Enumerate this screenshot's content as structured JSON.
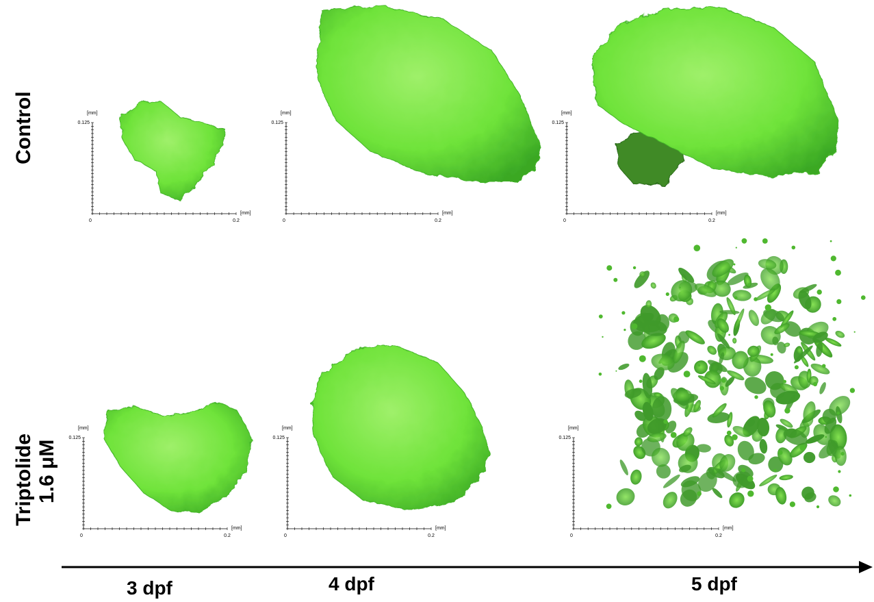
{
  "rows": [
    {
      "label": "Control",
      "label_extra": ""
    },
    {
      "label": "Triptolide",
      "label_extra": "1.6 μM"
    }
  ],
  "timepoints": [
    "3 dpf",
    "4 dpf",
    "5 dpf"
  ],
  "axis": {
    "unit_y": "[mm]",
    "unit_x": "[mm]",
    "y_max_label": "0.125",
    "x_max_label": "0.2",
    "origin_label": "0"
  },
  "colors": {
    "tissue": "#6fe33a",
    "tissue_dark": "#2f9a1c",
    "tissue_light": "#9ff06a",
    "axis": "#000000"
  },
  "panels": [
    {
      "row": 0,
      "time": "3 dpf",
      "shape": "small-heart-lobe"
    },
    {
      "row": 0,
      "time": "4 dpf",
      "shape": "large-ovoid"
    },
    {
      "row": 0,
      "time": "5 dpf",
      "shape": "large-dome"
    },
    {
      "row": 1,
      "time": "3 dpf",
      "shape": "kidney"
    },
    {
      "row": 1,
      "time": "4 dpf",
      "shape": "rounded-mass"
    },
    {
      "row": 1,
      "time": "5 dpf",
      "shape": "fragmented-cluster"
    }
  ]
}
